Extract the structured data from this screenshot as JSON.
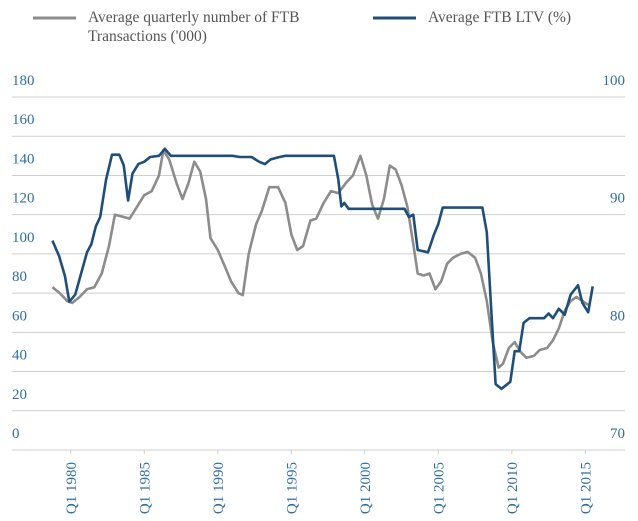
{
  "chart_data": {
    "type": "line",
    "series": [
      {
        "name": "Average quarterly number of FTB Transactions ('000)",
        "color": "#8c8c8c",
        "axis": "y",
        "x": [
          1978.75,
          1979.25,
          1979.75,
          1980.1,
          1980.6,
          1981.1,
          1981.6,
          1982.1,
          1982.6,
          1983.0,
          1983.5,
          1984.0,
          1984.5,
          1985.0,
          1985.5,
          1986.0,
          1986.3,
          1986.7,
          1987.2,
          1987.6,
          1988.0,
          1988.4,
          1988.8,
          1989.2,
          1989.5,
          1990.0,
          1990.4,
          1990.9,
          1991.4,
          1991.7,
          1992.1,
          1992.6,
          1993.0,
          1993.5,
          1994.1,
          1994.6,
          1995.0,
          1995.4,
          1995.8,
          1996.3,
          1996.7,
          1997.2,
          1997.7,
          1998.2,
          1998.7,
          1999.2,
          1999.7,
          2000.1,
          2000.5,
          2000.9,
          2001.3,
          2001.7,
          2002.1,
          2002.5,
          2002.9,
          2003.3,
          2003.6,
          2004.0,
          2004.4,
          2004.8,
          2005.2,
          2005.6,
          2006.0,
          2006.5,
          2007.0,
          2007.5,
          2007.9,
          2008.3,
          2008.7,
          2009.1,
          2009.4,
          2009.8,
          2010.2,
          2010.6,
          2011.0,
          2011.5,
          2011.9,
          2012.4,
          2012.8,
          2013.2,
          2013.6,
          2014.0,
          2014.4,
          2014.8,
          2015.2
        ],
        "values": [
          83,
          80,
          76,
          75,
          78,
          82,
          83,
          90,
          104,
          120,
          119,
          118,
          124,
          130,
          132,
          140,
          153,
          148,
          136,
          128,
          136,
          147,
          142,
          128,
          108,
          102,
          95,
          86,
          80,
          79,
          100,
          115,
          122,
          134,
          134,
          126,
          110,
          102,
          104,
          117,
          118,
          126,
          132,
          131,
          136,
          140,
          150,
          140,
          125,
          118,
          128,
          145,
          143,
          135,
          124,
          105,
          90,
          89,
          90,
          82,
          86,
          95,
          98,
          100,
          101,
          98,
          90,
          76,
          55,
          42,
          44,
          52,
          55,
          50,
          47,
          48,
          51,
          52,
          56,
          62,
          71,
          76,
          78,
          76,
          74
        ]
      },
      {
        "name": "Average FTB LTV (%)",
        "color": "#1f4e79",
        "axis": "y2",
        "x": [
          1978.75,
          1979.2,
          1979.6,
          1979.9,
          1980.3,
          1980.7,
          1981.1,
          1981.4,
          1981.7,
          1982.0,
          1982.4,
          1982.8,
          1983.3,
          1983.6,
          1983.9,
          1984.2,
          1984.6,
          1985.0,
          1985.4,
          1986.0,
          1986.4,
          1986.8,
          1989.0,
          1991.0,
          1991.5,
          1992.3,
          1992.8,
          1993.2,
          1993.6,
          1994.2,
          1994.6,
          1997.9,
          1998.2,
          1998.4,
          1998.6,
          1998.9,
          2002.7,
          2003.0,
          2003.3,
          2003.6,
          2004.3,
          2004.7,
          2005.0,
          2005.3,
          2008.0,
          2008.3,
          2008.6,
          2008.9,
          2009.3,
          2009.9,
          2010.2,
          2010.5,
          2010.8,
          2011.2,
          2012.2,
          2012.5,
          2012.8,
          2013.2,
          2013.6,
          2014.0,
          2014.5,
          2014.8,
          2015.2,
          2015.5
        ],
        "values": [
          87.8,
          86.5,
          84.8,
          82.6,
          83.2,
          85,
          86.8,
          87.5,
          89,
          89.8,
          93,
          95.1,
          95.1,
          94.2,
          91.2,
          93.5,
          94.3,
          94.5,
          94.9,
          95.0,
          95.6,
          95.0,
          95.0,
          95.0,
          94.9,
          94.9,
          94.5,
          94.3,
          94.7,
          94.9,
          95.0,
          95.0,
          93,
          90.7,
          91.0,
          90.5,
          90.5,
          89.8,
          90,
          87,
          86.8,
          88.3,
          89.2,
          90.6,
          90.6,
          88.5,
          82,
          75.6,
          75.2,
          75.8,
          78.4,
          78.4,
          80.8,
          81.2,
          81.2,
          81.6,
          81.2,
          82,
          81.5,
          83.2,
          84.0,
          82.5,
          81.7,
          83.9
        ]
      }
    ],
    "xlim": [
      1976,
      2017.7
    ],
    "xticks": [
      {
        "value": 1980,
        "label": "Q1 1980"
      },
      {
        "value": 1985,
        "label": "Q1 1985"
      },
      {
        "value": 1990,
        "label": "Q1 1990"
      },
      {
        "value": 1995,
        "label": "Q1 1995"
      },
      {
        "value": 2000,
        "label": "Q1 2000"
      },
      {
        "value": 2005,
        "label": "Q1 2005"
      },
      {
        "value": 2010,
        "label": "Q1 2010"
      },
      {
        "value": 2015,
        "label": "Q1 2015"
      }
    ],
    "ylim": [
      0,
      180
    ],
    "yticks": [
      0,
      20,
      40,
      60,
      80,
      100,
      120,
      140,
      160,
      180
    ],
    "y2lim": [
      70,
      100
    ],
    "y2ticks": [
      70,
      80,
      90,
      100
    ],
    "grid": true
  }
}
